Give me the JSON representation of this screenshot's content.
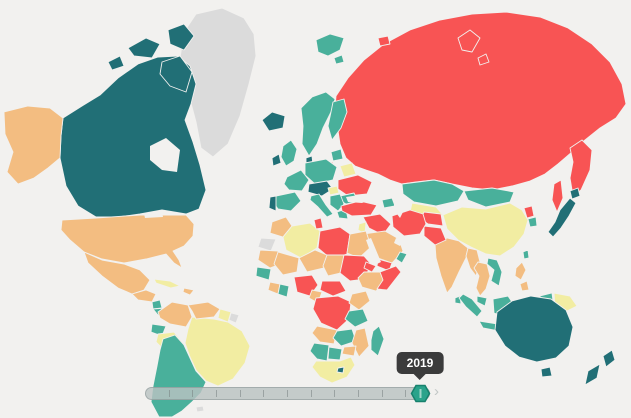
{
  "app": {
    "background": "#f2f1ef"
  },
  "timeline": {
    "tooltip_year": "2019",
    "tick_count": 11,
    "handle_color": "#2aa38b",
    "tooltip_bg": "#3b3b3b",
    "next_icon": "›"
  },
  "palette": {
    "very_high_peace": "#216f76",
    "high_peace": "#49b09b",
    "medium_peace": "#f2eda2",
    "low_peace": "#f3bd81",
    "very_low_peace": "#f85454",
    "no_data": "#dbdbdb",
    "water": "#f2f1ef"
  },
  "map": {
    "fills": {
      "greenland": "#dbdbdb",
      "iceland": "#216f76",
      "canada": "#216f76",
      "alaska": "#f3bd81",
      "usa": "#f3bd81",
      "mexico": "#f3bd81",
      "guatemala": "#f3bd81",
      "nicaragua": "#49b09b",
      "costa_rica_panama": "#49b09b",
      "cuba": "#f2eda2",
      "hispaniola": "#f3bd81",
      "colombia": "#f3bd81",
      "venezuela": "#f3bd81",
      "guyana": "#f2eda2",
      "french_guiana": "#dbdbdb",
      "ecuador": "#49b09b",
      "peru": "#f2eda2",
      "brazil": "#f2eda2",
      "chile_argentina": "#49b09b",
      "falklands": "#dbdbdb",
      "uk": "#49b09b",
      "ireland": "#216f76",
      "scandinavia": "#49b09b",
      "finland": "#49b09b",
      "svalbard": "#49b09b",
      "denmark": "#216f76",
      "baltics": "#49b09b",
      "kaliningrad": "#f85454",
      "belarus": "#f2eda2",
      "ukraine": "#f85454",
      "central_europe": "#49b09b",
      "france": "#49b09b",
      "spain": "#49b09b",
      "portugal": "#216f76",
      "alpine_states": "#216f76",
      "italy": "#49b09b",
      "hungary": "#f2eda2",
      "balkans": "#49b09b",
      "greece": "#49b09b",
      "romania": "#49b09b",
      "russia": "#f85454",
      "kamchatka": "#f85454",
      "sakhalin": "#f85454",
      "arctic_islands": "#f85454",
      "kazakhstan": "#49b09b",
      "central_asia": "#f2eda2",
      "caucasus": "#49b09b",
      "mongolia": "#49b09b",
      "china": "#f2eda2",
      "north_korea": "#f85454",
      "south_korea": "#49b09b",
      "japan": "#216f76",
      "taiwan": "#49b09b",
      "philippines": "#f3bd81",
      "vietnam_laos": "#49b09b",
      "thailand": "#f3bd81",
      "myanmar": "#f3bd81",
      "india": "#f3bd81",
      "sri_lanka": "#49b09b",
      "pakistan": "#f85454",
      "afghanistan": "#f85454",
      "iran": "#f85454",
      "turkey": "#f85454",
      "iraq_syria": "#f85454",
      "israel_jordan": "#f2eda2",
      "saudi_arabia": "#f3bd81",
      "yemen": "#f85454",
      "oman": "#49b09b",
      "morocco": "#f3bd81",
      "western_sahara": "#dbdbdb",
      "algeria": "#f2eda2",
      "tunisia": "#f85454",
      "libya": "#f85454",
      "egypt": "#f3bd81",
      "mauritania": "#f3bd81",
      "mali": "#f3bd81",
      "niger": "#f3bd81",
      "chad": "#f3bd81",
      "sudan": "#f85454",
      "eritrea": "#f85454",
      "ethiopia": "#f3bd81",
      "somalia": "#f85454",
      "senegal": "#49b09b",
      "ivory_coast": "#f3bd81",
      "ghana": "#49b09b",
      "nigeria": "#f85454",
      "cameroon": "#f3bd81",
      "central_african_republic": "#f85454",
      "dr_congo": "#f85454",
      "kenya": "#f3bd81",
      "tanzania": "#49b09b",
      "angola": "#f3bd81",
      "zambia": "#49b09b",
      "mozambique": "#f3bd81",
      "zimbabwe": "#f3bd81",
      "namibia": "#49b09b",
      "botswana": "#49b09b",
      "south_africa": "#f2eda2",
      "lesotho": "#216f76",
      "madagascar": "#49b09b",
      "malaysia": "#49b09b",
      "sumatra": "#49b09b",
      "java": "#49b09b",
      "borneo": "#49b09b",
      "sulawesi": "#49b09b",
      "west_papua": "#49b09b",
      "papua_new_guinea": "#f2eda2",
      "australia": "#216f76",
      "tasmania": "#216f76",
      "new_zealand": "#216f76",
      "water": "#f2f1ef"
    }
  }
}
